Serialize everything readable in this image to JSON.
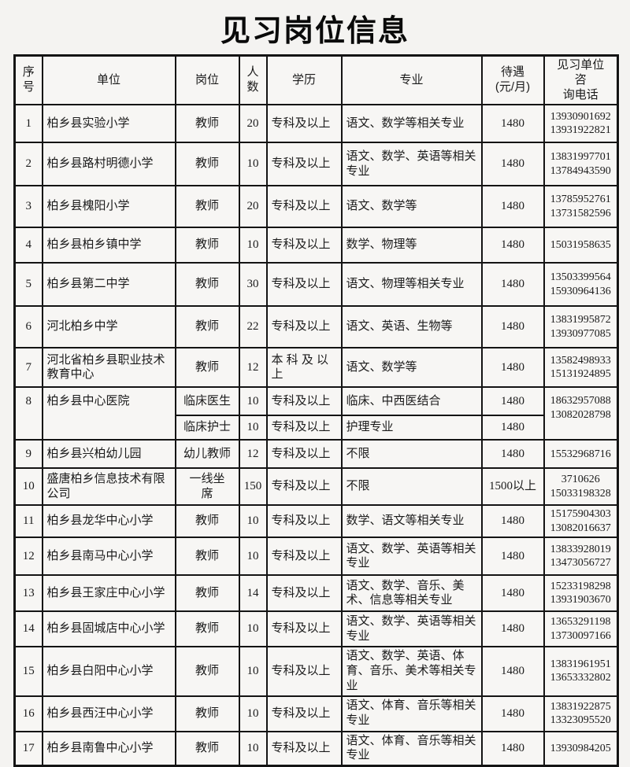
{
  "title": "见习岗位信息",
  "table": {
    "columns": {
      "num": "序\n号",
      "unit": "单位",
      "position": "岗位",
      "count": "人\n数",
      "education": "学历",
      "major": "专业",
      "salary": "待遇\n(元/月)",
      "phone": "见习单位　咨\n询电话"
    },
    "rows": [
      {
        "num": "1",
        "unit": "柏乡县实验小学",
        "position": "教师",
        "count": "20",
        "education": "专科及以上",
        "major": "语文、数学等相关专业",
        "salary": "1480",
        "phones": [
          "13930901692",
          "13931922821"
        ]
      },
      {
        "num": "2",
        "unit": "柏乡县路村明德小学",
        "position": "教师",
        "count": "10",
        "education": "专科及以上",
        "major": "语文、数学、英语等相关专业",
        "salary": "1480",
        "phones": [
          "13831997701",
          "13784943590"
        ]
      },
      {
        "num": "3",
        "unit": "柏乡县槐阳小学",
        "position": "教师",
        "count": "20",
        "education": "专科及以上",
        "major": "语文、数学等",
        "salary": "1480",
        "phones": [
          "13785952761",
          "13731582596"
        ]
      },
      {
        "num": "4",
        "unit": "柏乡县柏乡镇中学",
        "position": "教师",
        "count": "10",
        "education": "专科及以上",
        "major": "数学、物理等",
        "salary": "1480",
        "phones": [
          "15031958635"
        ]
      },
      {
        "num": "5",
        "unit": "柏乡县第二中学",
        "position": "教师",
        "count": "30",
        "education": "专科及以上",
        "major": "语文、物理等相关专业",
        "salary": "1480",
        "phones": [
          "13503399564",
          "15930964136"
        ]
      },
      {
        "num": "6",
        "unit": "河北柏乡中学",
        "position": "教师",
        "count": "22",
        "education": "专科及以上",
        "major": "语文、英语、生物等",
        "salary": "1480",
        "phones": [
          "13831995872",
          "13930977085"
        ]
      },
      {
        "num": "7",
        "unit": "河北省柏乡县职业技术教育中心",
        "position": "教师",
        "count": "12",
        "education": "本 科 及 以\n上",
        "major": "语文、数学等",
        "salary": "1480",
        "phones": [
          "13582498933",
          "15131924895"
        ]
      },
      {
        "num": "8",
        "unit": "柏乡县中心医院",
        "phones": [
          "18632957088",
          "13082028798"
        ],
        "sub_rows": [
          {
            "position": "临床医生",
            "count": "10",
            "education": "专科及以上",
            "major": "临床、中西医结合",
            "salary": "1480"
          },
          {
            "position": "临床护士",
            "count": "10",
            "education": "专科及以上",
            "major": "护理专业",
            "salary": "1480"
          }
        ]
      },
      {
        "num": "9",
        "unit": "柏乡县兴柏幼儿园",
        "position": "幼儿教师",
        "count": "12",
        "education": "专科及以上",
        "major": "不限",
        "salary": "1480",
        "phones": [
          "15532968716"
        ]
      },
      {
        "num": "10",
        "unit": "盛唐柏乡信息技术有限公司",
        "position": "一线坐\n席",
        "count": "150",
        "education": "专科及以上",
        "major": "不限",
        "salary": "1500以上",
        "phones": [
          "3710626",
          "15033198328"
        ]
      },
      {
        "num": "11",
        "unit": "柏乡县龙华中心小学",
        "position": "教师",
        "count": "10",
        "education": "专科及以上",
        "major": "数学、语文等相关专业",
        "salary": "1480",
        "phones": [
          "15175904303",
          "13082016637"
        ]
      },
      {
        "num": "12",
        "unit": "柏乡县南马中心小学",
        "position": "教师",
        "count": "10",
        "education": "专科及以上",
        "major": "语文、数学、英语等相关专业",
        "salary": "1480",
        "phones": [
          "13833928019",
          "13473056727"
        ]
      },
      {
        "num": "13",
        "unit": "柏乡县王家庄中心小学",
        "position": "教师",
        "count": "14",
        "education": "专科及以上",
        "major": "语文、数学、音乐、美术、信息等相关专业",
        "salary": "1480",
        "phones": [
          "15233198298",
          "13931903670"
        ]
      },
      {
        "num": "14",
        "unit": "柏乡县固城店中心小学",
        "position": "教师",
        "count": "10",
        "education": "专科及以上",
        "major": "语文、数学、英语等相关专业",
        "salary": "1480",
        "phones": [
          "13653291198",
          "13730097166"
        ]
      },
      {
        "num": "15",
        "unit": "柏乡县白阳中心小学",
        "position": "教师",
        "count": "10",
        "education": "专科及以上",
        "major": "语文、数学、英语、体育、音乐、美术等相关专业",
        "salary": "1480",
        "phones": [
          "13831961951",
          "13653332802"
        ]
      },
      {
        "num": "16",
        "unit": "柏乡县西汪中心小学",
        "position": "教师",
        "count": "10",
        "education": "专科及以上",
        "major": "语文、体育、音乐等相关专业",
        "salary": "1480",
        "phones": [
          "13831922875",
          "13323095520"
        ]
      },
      {
        "num": "17",
        "unit": "柏乡县南鲁中心小学",
        "position": "教师",
        "count": "10",
        "education": "专科及以上",
        "major": "语文、体育、音乐等相关专业",
        "salary": "1480",
        "phones": [
          "13930984205"
        ]
      }
    ]
  }
}
